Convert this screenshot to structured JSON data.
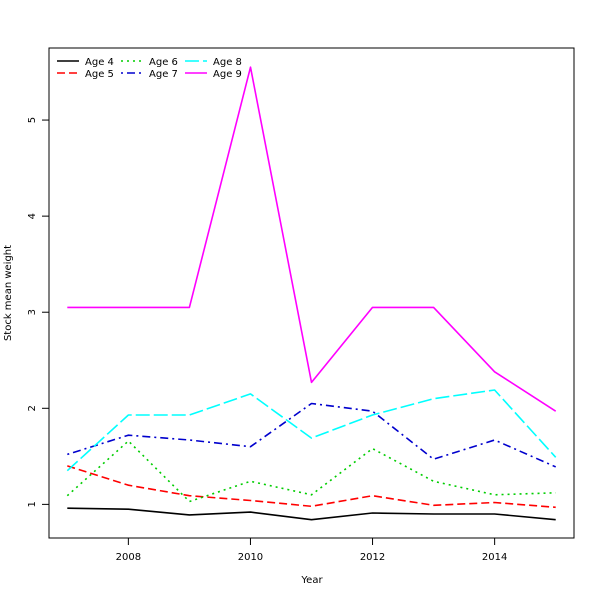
{
  "chart_data": {
    "type": "line",
    "title": "",
    "xlabel": "Year",
    "ylabel": "Stock mean weight",
    "xlim": [
      2006.7,
      2015.3
    ],
    "ylim": [
      0.65,
      5.75
    ],
    "x_ticks": [
      2008,
      2010,
      2012,
      2014
    ],
    "y_ticks": [
      1,
      2,
      3,
      4,
      5
    ],
    "grid": false,
    "legend_placement": "top-left",
    "x": [
      2007,
      2008,
      2009,
      2010,
      2011,
      2012,
      2013,
      2014,
      2015
    ],
    "series": [
      {
        "name": "Age 4",
        "color": "#000000",
        "dash": "solid",
        "values": [
          0.96,
          0.95,
          0.89,
          0.92,
          0.84,
          0.91,
          0.9,
          0.9,
          0.84
        ]
      },
      {
        "name": "Age 5",
        "color": "#ff0000",
        "dash": "dashed",
        "values": [
          1.4,
          1.2,
          1.09,
          1.04,
          0.98,
          1.09,
          0.99,
          1.02,
          0.97
        ]
      },
      {
        "name": "Age 6",
        "color": "#00cd00",
        "dash": "dotted",
        "values": [
          1.09,
          1.66,
          1.03,
          1.24,
          1.1,
          1.58,
          1.24,
          1.1,
          1.12
        ]
      },
      {
        "name": "Age 7",
        "color": "#0000cd",
        "dash": "dotdash",
        "values": [
          1.52,
          1.72,
          1.67,
          1.6,
          2.05,
          1.97,
          1.47,
          1.67,
          1.39
        ]
      },
      {
        "name": "Age 8",
        "color": "#00ffff",
        "dash": "longdash",
        "values": [
          1.35,
          1.93,
          1.93,
          2.15,
          1.69,
          1.93,
          2.1,
          2.19,
          1.49
        ]
      },
      {
        "name": "Age 9",
        "color": "#ff00ff",
        "dash": "solid",
        "values": [
          3.05,
          3.05,
          3.05,
          5.55,
          2.27,
          3.05,
          3.05,
          2.38,
          1.97
        ]
      }
    ]
  }
}
